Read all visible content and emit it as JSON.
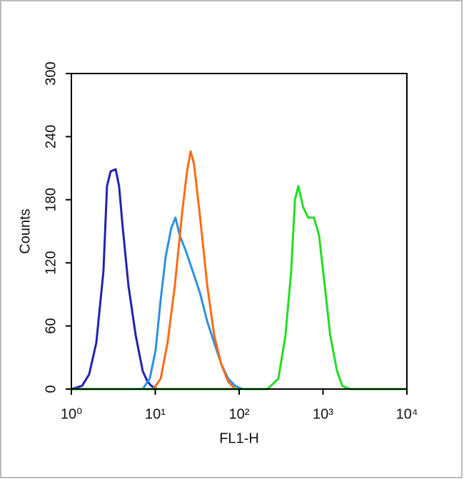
{
  "chart_data": {
    "type": "line",
    "xlabel": "FL1-H",
    "ylabel": "Counts",
    "xscale": "log",
    "xlim": [
      1,
      10000
    ],
    "xticks": [
      {
        "value": 1,
        "label": "10⁰"
      },
      {
        "value": 10,
        "label": "10¹"
      },
      {
        "value": 100,
        "label": "10²"
      },
      {
        "value": 1000,
        "label": "10³"
      },
      {
        "value": 10000,
        "label": "10⁴"
      }
    ],
    "ylim": [
      0,
      300
    ],
    "yticks": [
      0,
      60,
      120,
      180,
      240,
      300
    ],
    "series": [
      {
        "color": "#2222b0",
        "x": [
          1,
          1.34,
          1.63,
          1.98,
          2.41,
          2.66,
          2.94,
          3.37,
          3.7,
          4.1,
          4.8,
          5.84,
          7.1,
          8.1,
          9.0,
          10.5
        ],
        "values": [
          0,
          3,
          14,
          44,
          112,
          193,
          207,
          209,
          193,
          153,
          98,
          51,
          17,
          7,
          3,
          0
        ]
      },
      {
        "color": "#2e8fe0",
        "x": [
          7.1,
          8.6,
          10.1,
          11.6,
          13.3,
          15.5,
          17.4,
          19.6,
          23,
          28,
          34,
          41.7,
          50.5,
          61,
          74,
          90,
          110
        ],
        "values": [
          0,
          10,
          37,
          85,
          126,
          153,
          163,
          146,
          132,
          112,
          92,
          64,
          44,
          24,
          10,
          3,
          0
        ]
      },
      {
        "color": "#ff6a13",
        "x": [
          9.5,
          11.6,
          14,
          17.1,
          20.8,
          23.9,
          26.4,
          29,
          34,
          41.7,
          50.5,
          61,
          74,
          90
        ],
        "values": [
          0,
          10,
          44,
          98,
          166,
          207,
          226,
          214,
          166,
          98,
          51,
          24,
          7,
          0
        ]
      },
      {
        "color": "#22dd22",
        "x": [
          1,
          218,
          294,
          357,
          417,
          463,
          508,
          580,
          665,
          780,
          897,
          1050,
          1220,
          1470,
          1700,
          2100,
          10000
        ],
        "values": [
          0,
          0,
          10,
          51,
          112,
          180,
          193,
          173,
          163,
          163,
          146,
          98,
          51,
          17,
          3,
          0,
          0
        ]
      }
    ]
  }
}
